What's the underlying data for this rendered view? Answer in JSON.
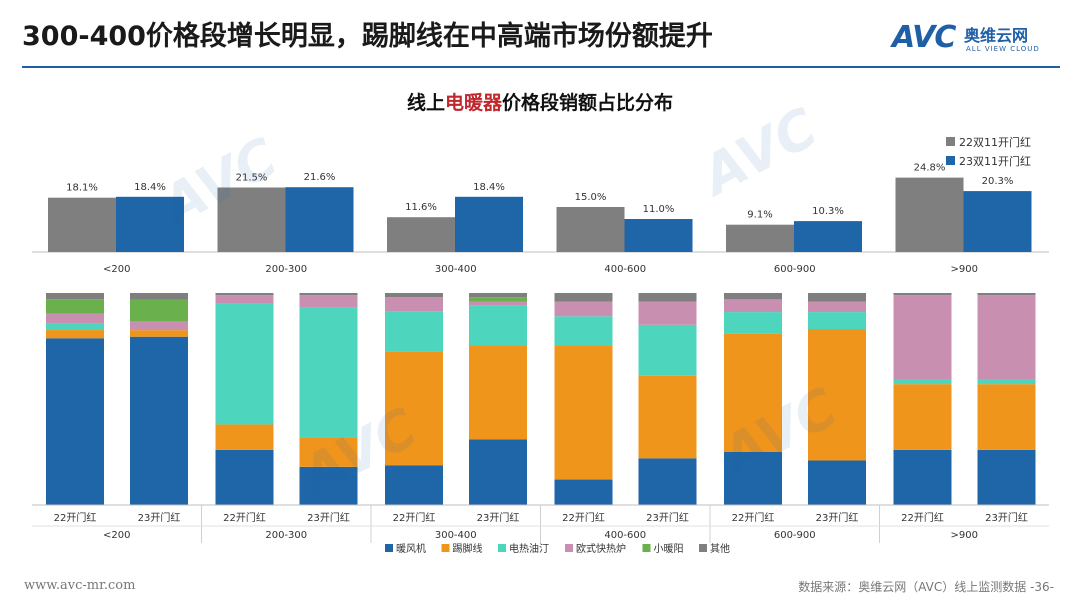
{
  "header": {
    "title": "300-400价格段增长明显，踢脚线在中高端市场份额提升",
    "logo_mark": "AVC",
    "logo_cn": "奥维云网",
    "logo_en": "ALL VIEW CLOUD"
  },
  "chart_title": {
    "prefix": "线上",
    "highlight": "电暖器",
    "suffix": "价格段销额占比分布"
  },
  "colors": {
    "series22": "#7f7f7f",
    "series23": "#1f66a8",
    "stack": [
      "#1f66a8",
      "#f0951c",
      "#4dd6bd",
      "#c98fb0",
      "#6ab04c",
      "#7f7f7f"
    ],
    "title_rule": "#1f5fa8",
    "highlight": "#c0272d"
  },
  "chart_data": [
    {
      "type": "bar",
      "categories": [
        "<200",
        "200-300",
        "300-400",
        "400-600",
        "600-900",
        ">900"
      ],
      "series": [
        {
          "name": "22双11开门红",
          "values": [
            18.1,
            21.5,
            11.6,
            15.0,
            9.1,
            24.8
          ],
          "labels": [
            "18.1%",
            "21.5%",
            "11.6%",
            "15.0%",
            "9.1%",
            "24.8%"
          ]
        },
        {
          "name": "23双11开门红",
          "values": [
            18.4,
            21.6,
            18.4,
            11.0,
            10.3,
            20.3
          ],
          "labels": [
            "18.4%",
            "21.6%",
            "18.4%",
            "11.0%",
            "10.3%",
            "20.3%"
          ]
        }
      ],
      "ylim": [
        0,
        26
      ],
      "legend": "top-right"
    },
    {
      "type": "bar",
      "stacked": true,
      "groups": [
        "<200",
        "200-300",
        "300-400",
        "400-600",
        "600-900",
        ">900"
      ],
      "bar_labels": [
        "22开门红",
        "23开门红"
      ],
      "series_names": [
        "暖风机",
        "踢脚线",
        "电热油汀",
        "欧式快热炉",
        "小暖阳",
        "其他"
      ],
      "bars": [
        [
          81.0,
          4.0,
          3.0,
          5.0,
          7.0,
          3.0
        ],
        [
          77.0,
          3.0,
          0.0,
          4.0,
          10.0,
          3.0
        ],
        [
          26.0,
          12.0,
          57.0,
          4.0,
          0.0,
          1.0
        ],
        [
          18.0,
          14.0,
          61.0,
          6.0,
          0.0,
          1.0
        ],
        [
          19.0,
          55.0,
          19.0,
          7.0,
          0.0,
          2.0
        ],
        [
          31.0,
          44.0,
          19.0,
          2.0,
          2.0,
          2.0
        ],
        [
          12.0,
          63.0,
          14.0,
          7.0,
          0.0,
          4.0
        ],
        [
          22.0,
          39.0,
          24.0,
          11.0,
          0.0,
          4.0
        ],
        [
          25.0,
          56.0,
          10.0,
          6.0,
          0.0,
          3.0
        ],
        [
          21.0,
          62.0,
          8.0,
          5.0,
          0.0,
          4.0
        ],
        [
          26.0,
          31.0,
          2.0,
          40.0,
          0.0,
          1.0
        ],
        [
          26.0,
          31.0,
          2.0,
          40.0,
          0.0,
          1.0
        ]
      ],
      "ylim": [
        0,
        100
      ],
      "legend": "bottom"
    }
  ],
  "footer": {
    "url": "www.avc-mr.com",
    "source": "数据来源：奥维云网（AVC）线上监测数据",
    "page": "-36-"
  }
}
